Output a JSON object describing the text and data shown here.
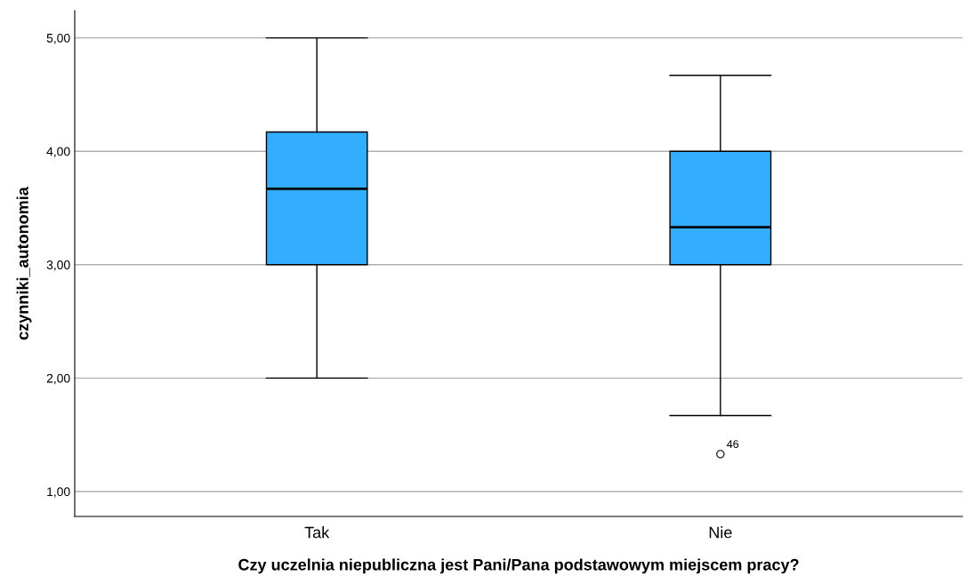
{
  "chart_data": {
    "type": "box",
    "xlabel": "Czy uczelnia niepubliczna jest Pani/Pana podstawowym miejscem pracy?",
    "ylabel": "czynniki_autonomia",
    "categories": [
      "Tak",
      "Nie"
    ],
    "boxes": [
      {
        "low": 2.0,
        "q1": 3.0,
        "median": 3.67,
        "q3": 4.17,
        "high": 5.0
      },
      {
        "low": 1.67,
        "q1": 3.0,
        "median": 3.33,
        "q3": 4.0,
        "high": 4.67,
        "outliers": [
          1.33
        ]
      }
    ],
    "color": "#33adff",
    "ylim": [
      0.78,
      5.24
    ],
    "yticks": [
      {
        "value": 1,
        "label": "1,00"
      },
      {
        "value": 2,
        "label": "2,00"
      },
      {
        "value": 3,
        "label": "3,00"
      },
      {
        "value": 4,
        "label": "4,00"
      },
      {
        "value": 5,
        "label": "5,00"
      }
    ],
    "grid": "y",
    "annotations": [
      "46"
    ]
  }
}
